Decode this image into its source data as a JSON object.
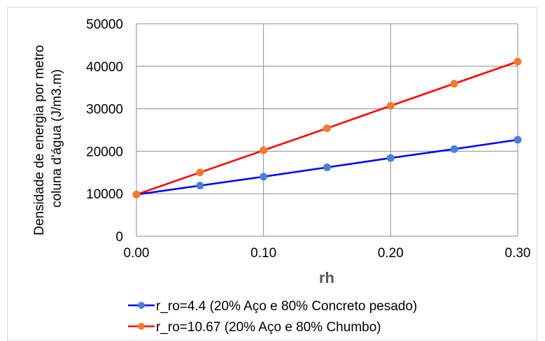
{
  "chart_data": {
    "type": "line",
    "xlabel": "rh",
    "ylabel_lines": [
      "Densidade de energia por metro",
      "coluna d'água (J/m3.m)"
    ],
    "x": [
      0.0,
      0.05,
      0.1,
      0.15,
      0.2,
      0.25,
      0.3
    ],
    "x_ticks": [
      "0.00",
      "0.10",
      "0.20",
      "0.30"
    ],
    "x_tick_values": [
      0.0,
      0.1,
      0.2,
      0.3
    ],
    "xlim": [
      0.0,
      0.3
    ],
    "y_ticks": [
      "0",
      "10000",
      "20000",
      "30000",
      "40000",
      "50000"
    ],
    "y_tick_values": [
      0,
      10000,
      20000,
      30000,
      40000,
      50000
    ],
    "ylim": [
      0,
      50000
    ],
    "grid": true,
    "legend_position": "bottom",
    "series": [
      {
        "name": "r_ro=4.4 (20% Aço e 80% Concreto pesado)",
        "line_color": "#0000ff",
        "marker_color": "#4a7fd6",
        "values": [
          9800,
          11900,
          14000,
          16200,
          18400,
          20500,
          22700
        ]
      },
      {
        "name": "r_ro=10.67 (20% Aço e 80% Chumbo)",
        "line_color": "#ff0000",
        "marker_color": "#ed7d31",
        "values": [
          9800,
          15000,
          20200,
          25400,
          30700,
          35900,
          41100
        ]
      }
    ]
  }
}
